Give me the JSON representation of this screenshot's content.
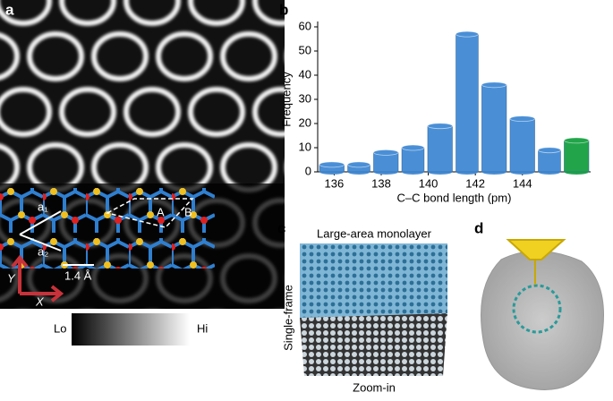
{
  "chart_data": {
    "type": "histogram",
    "panel_label": "b",
    "x_label": "C–C bond length (pm)",
    "y_label": "Frequency",
    "bins": [
      135.3,
      136.5,
      137.6,
      138.8,
      139.9,
      141.1,
      142.2,
      143.4,
      144.6,
      145.7,
      146.9
    ],
    "values": [
      3,
      3,
      8,
      10,
      19,
      57,
      36,
      22,
      9,
      13
    ],
    "colors": [
      "#4a8fd6",
      "#4a8fd6",
      "#4a8fd6",
      "#4a8fd6",
      "#4a8fd6",
      "#4a8fd6",
      "#4a8fd6",
      "#4a8fd6",
      "#4a8fd6",
      "#22a54a"
    ],
    "xlim": [
      135.3,
      146.9
    ],
    "xticks": [
      136,
      138,
      140,
      142,
      144
    ],
    "ylim": [
      0,
      60
    ],
    "yticks": [
      0,
      10,
      20,
      30,
      40,
      50,
      60
    ]
  },
  "panels": {
    "a": {
      "label": "a",
      "vectors": [
        "a₁",
        "a₂"
      ],
      "scale": "1.4 Å",
      "sites": [
        "A",
        "B"
      ],
      "axes": [
        "Y",
        "X"
      ],
      "colorbar": [
        "Lo",
        "Hi"
      ]
    },
    "c": {
      "label": "c",
      "top": "Large-area monolayer",
      "side": "Single-frame",
      "bottom": "Zoom-in"
    },
    "d": {
      "label": "d"
    }
  }
}
